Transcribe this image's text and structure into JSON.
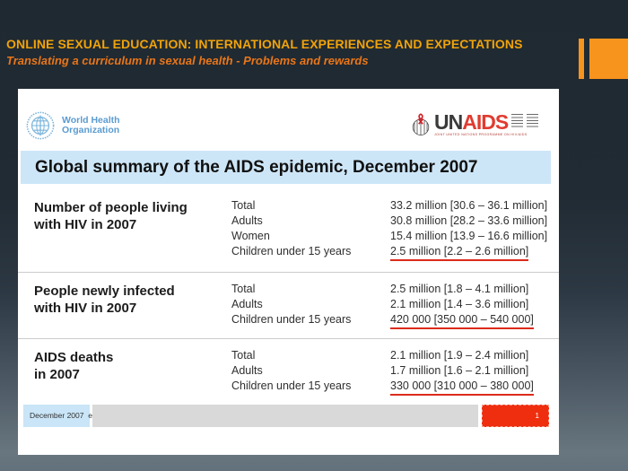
{
  "header": {
    "title": "ONLINE SEXUAL EDUCATION: INTERNATIONAL EXPERIENCES AND EXPECTATIONS",
    "subtitle": "Translating a curriculum in sexual health - Problems and rewards"
  },
  "logos": {
    "who": {
      "name_line1": "World Health",
      "name_line2": "Organization"
    },
    "unaids": {
      "wordmark_un": "UN",
      "wordmark_aids": "AIDS",
      "tagline": "JOINT UNITED NATIONS PROGRAMME ON HIV/AIDS"
    }
  },
  "table": {
    "title": "Global summary of the AIDS epidemic, December 2007",
    "sections": [
      {
        "label_lines": [
          "Number of people living",
          "with HIV in 2007"
        ],
        "rows": [
          {
            "category": "Total",
            "value": "33.2 million [30.6 – 36.1 million]",
            "underlined": false
          },
          {
            "category": "Adults",
            "value": "30.8 million [28.2 – 33.6 million]",
            "underlined": false
          },
          {
            "category": "Women",
            "value": "15.4 million [13.9 – 16.6 million]",
            "underlined": false
          },
          {
            "category": "Children under 15 years",
            "value": "2.5 million [2.2 – 2.6 million]",
            "underlined": true
          }
        ]
      },
      {
        "label_lines": [
          "People newly infected",
          "with HIV in 2007"
        ],
        "rows": [
          {
            "category": "Total",
            "value": "2.5 million [1.8 – 4.1 million]",
            "underlined": false
          },
          {
            "category": "Adults",
            "value": "2.1 million [1.4 – 3.6 million]",
            "underlined": false
          },
          {
            "category": "Children under 15 years",
            "value": "420 000 [350 000 – 540 000]",
            "underlined": true
          }
        ]
      },
      {
        "label_lines": [
          "AIDS deaths",
          "in 2007"
        ],
        "rows": [
          {
            "category": "Total",
            "value": "2.1 million [1.9 – 2.4 million]",
            "underlined": false
          },
          {
            "category": "Adults",
            "value": "1.7 million [1.6 – 2.1 million]",
            "underlined": false
          },
          {
            "category": "Children under 15 years",
            "value": "330 000 [310 000 – 380 000]",
            "underlined": true
          }
        ]
      }
    ]
  },
  "footer": {
    "date_label": "December 2007  e",
    "page_number": "1"
  },
  "colors": {
    "header_title": "#F0A30A",
    "header_subtitle": "#E8761A",
    "accent_orange": "#F7941E",
    "table_title_bg": "#CDE6F7",
    "underline_red": "#DD2B1C",
    "page_box_red": "#EE2E0F",
    "footer_date_bg": "#C9E5F7",
    "footer_bar_gray": "#D9D9D9",
    "who_blue": "#5B9BD0",
    "unaids_red": "#E03C31",
    "background_top": "#1F2931",
    "background_bottom": "#68767F"
  }
}
